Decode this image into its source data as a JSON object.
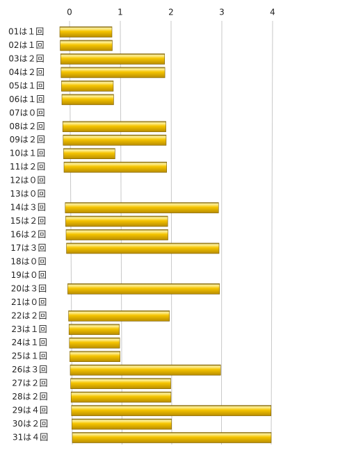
{
  "chart_data": {
    "type": "bar",
    "orientation": "horizontal",
    "categories": [
      "01は１回",
      "02は１回",
      "03は２回",
      "04は２回",
      "05は１回",
      "06は１回",
      "07は０回",
      "08は２回",
      "09は２回",
      "10は１回",
      "11は２回",
      "12は０回",
      "13は０回",
      "14は３回",
      "15は２回",
      "16は２回",
      "17は３回",
      "18は０回",
      "19は０回",
      "20は３回",
      "21は０回",
      "22は２回",
      "23は１回",
      "24は１回",
      "25は１回",
      "26は３回",
      "27は２回",
      "28は２回",
      "29は４回",
      "30は２回",
      "31は４回"
    ],
    "values": [
      1,
      1,
      2,
      2,
      1,
      1,
      0,
      2,
      2,
      1,
      2,
      0,
      0,
      3,
      2,
      2,
      3,
      0,
      0,
      3,
      0,
      2,
      1,
      1,
      1,
      3,
      2,
      2,
      4,
      2,
      4
    ],
    "color": "#f5c400",
    "xlim": [
      0,
      4
    ],
    "xticks": [
      0,
      1,
      2,
      3,
      4
    ],
    "grid": true
  }
}
